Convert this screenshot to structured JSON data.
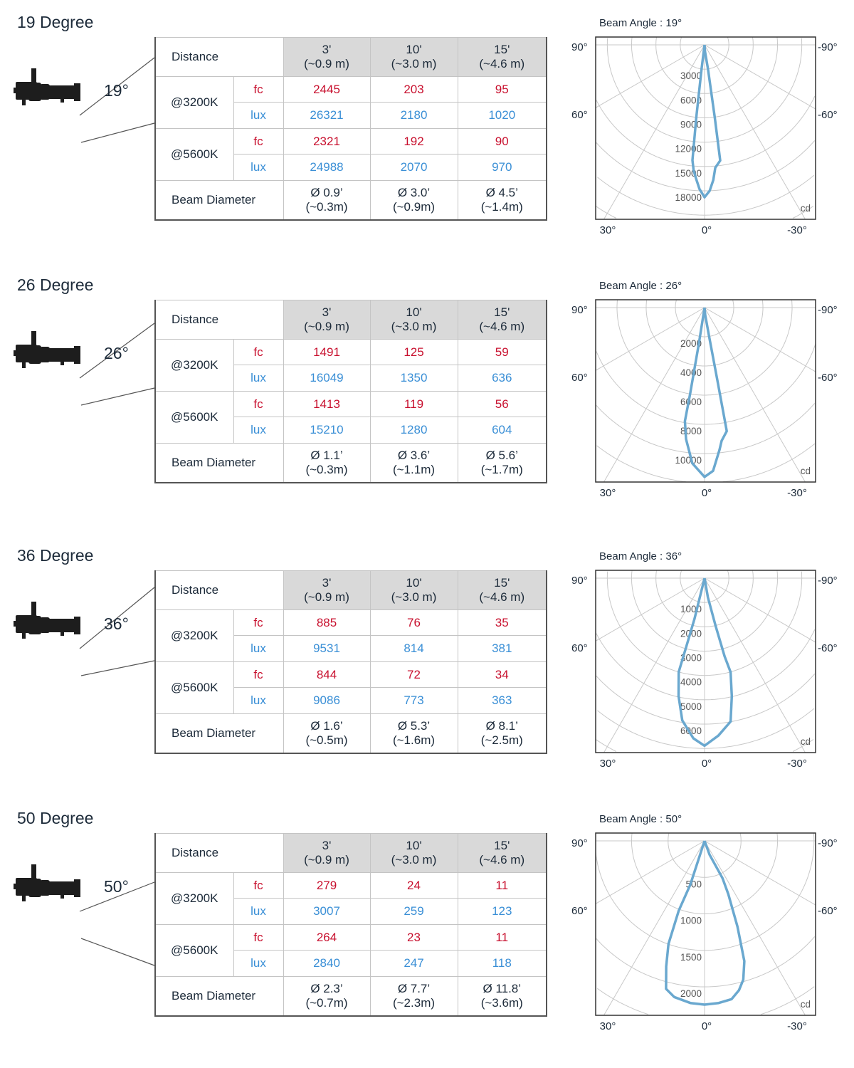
{
  "distance_label": "Distance",
  "beam_diameter_label": "Beam Diameter",
  "cct_labels": [
    "@3200K",
    "@5600K"
  ],
  "unit_labels": {
    "fc": "fc",
    "lux": "lux"
  },
  "distances": [
    {
      "ft": "3'",
      "m": "(~0.9 m)"
    },
    {
      "ft": "10'",
      "m": "(~3.0 m)"
    },
    {
      "ft": "15'",
      "m": "(~4.6 m)"
    }
  ],
  "colors": {
    "fc": "#c8102e",
    "lux": "#3a8fd6",
    "curve": "#6aa8cf",
    "header_bg": "#d9d9d9"
  },
  "sections": [
    {
      "title": "19 Degree",
      "angle": "19°",
      "fc_3200": [
        "2445",
        "203",
        "95"
      ],
      "lux_3200": [
        "26321",
        "2180",
        "1020"
      ],
      "fc_5600": [
        "2321",
        "192",
        "90"
      ],
      "lux_5600": [
        "24988",
        "2070",
        "970"
      ],
      "beam": [
        [
          "Ø 0.9’",
          "(~0.3m)"
        ],
        [
          "Ø 3.0’",
          "(~0.9m)"
        ],
        [
          "Ø 4.5’",
          "(~1.4m)"
        ]
      ]
    },
    {
      "title": "26 Degree",
      "angle": "26°",
      "fc_3200": [
        "1491",
        "125",
        "59"
      ],
      "lux_3200": [
        "16049",
        "1350",
        "636"
      ],
      "fc_5600": [
        "1413",
        "119",
        "56"
      ],
      "lux_5600": [
        "15210",
        "1280",
        "604"
      ],
      "beam": [
        [
          "Ø 1.1’",
          "(~0.3m)"
        ],
        [
          "Ø 3.6’",
          "(~1.1m)"
        ],
        [
          "Ø 5.6’",
          "(~1.7m)"
        ]
      ]
    },
    {
      "title": "36 Degree",
      "angle": "36°",
      "fc_3200": [
        "885",
        "76",
        "35"
      ],
      "lux_3200": [
        "9531",
        "814",
        "381"
      ],
      "fc_5600": [
        "844",
        "72",
        "34"
      ],
      "lux_5600": [
        "9086",
        "773",
        "363"
      ],
      "beam": [
        [
          "Ø 1.6’",
          "(~0.5m)"
        ],
        [
          "Ø 5.3’",
          "(~1.6m)"
        ],
        [
          "Ø 8.1’",
          "(~2.5m)"
        ]
      ]
    },
    {
      "title": "50 Degree",
      "angle": "50°",
      "fc_3200": [
        "279",
        "24",
        "11"
      ],
      "lux_3200": [
        "3007",
        "259",
        "123"
      ],
      "fc_5600": [
        "264",
        "23",
        "11"
      ],
      "lux_5600": [
        "2840",
        "247",
        "118"
      ],
      "beam": [
        [
          "Ø 2.3’",
          "(~0.7m)"
        ],
        [
          "Ø 7.7’",
          "(~2.3m)"
        ],
        [
          "Ø 11.8’",
          "(~3.6m)"
        ]
      ]
    }
  ],
  "chart_data": [
    {
      "type": "polar",
      "title": "Beam Angle : 19°",
      "unit": "cd",
      "angle_labels": {
        "left_top": "90°",
        "left_mid": "60°",
        "right_top": "-90°",
        "right_mid": "-60°",
        "bottom_left": "30°",
        "bottom_center": "0°",
        "bottom_right": "-30°"
      },
      "ring_labels": [
        "3000",
        "6000",
        "9000",
        "12000",
        "15000",
        "18000"
      ],
      "ring_values": [
        3000,
        6000,
        9000,
        12000,
        15000,
        18000
      ],
      "curve": [
        [
          0,
          0
        ],
        [
          7,
          3000
        ],
        [
          6.5,
          9000
        ],
        [
          6,
          14300
        ],
        [
          5,
          15500
        ],
        [
          3.8,
          16400
        ],
        [
          2,
          17800
        ],
        [
          0,
          18800
        ],
        [
          -2,
          18000
        ],
        [
          -3.7,
          16700
        ],
        [
          -5,
          15200
        ],
        [
          -7.7,
          14400
        ],
        [
          -8,
          9000
        ],
        [
          -8,
          3000
        ],
        [
          -4,
          800
        ],
        [
          0,
          0
        ]
      ]
    },
    {
      "type": "polar",
      "title": "Beam Angle : 26°",
      "unit": "cd",
      "angle_labels": {
        "left_top": "90°",
        "left_mid": "60°",
        "right_top": "-90°",
        "right_mid": "-60°",
        "bottom_left": "30°",
        "bottom_center": "0°",
        "bottom_right": "-30°"
      },
      "ring_labels": [
        "2000",
        "4000",
        "6000",
        "8000",
        "10000"
      ],
      "ring_values": [
        2000,
        4000,
        6000,
        8000,
        10000
      ],
      "curve": [
        [
          0,
          0
        ],
        [
          9,
          2500
        ],
        [
          9.5,
          6000
        ],
        [
          9.8,
          7900
        ],
        [
          8,
          9100
        ],
        [
          4.5,
          10700
        ],
        [
          0,
          11600
        ],
        [
          -3,
          11200
        ],
        [
          -6,
          9800
        ],
        [
          -7.3,
          9200
        ],
        [
          -10.2,
          8600
        ],
        [
          -10,
          5000
        ],
        [
          -9,
          2000
        ],
        [
          -5,
          500
        ],
        [
          0,
          0
        ]
      ]
    },
    {
      "type": "polar",
      "title": "Beam Angle : 36°",
      "unit": "cd",
      "angle_labels": {
        "left_top": "90°",
        "left_mid": "60°",
        "right_top": "-90°",
        "right_mid": "-60°",
        "bottom_left": "30°",
        "bottom_center": "0°",
        "bottom_right": "-30°"
      },
      "ring_labels": [
        "1000",
        "2000",
        "3000",
        "4000",
        "5000",
        "6000"
      ],
      "ring_values": [
        1000,
        2000,
        3000,
        4000,
        5000,
        6000
      ],
      "curve": [
        [
          0,
          0
        ],
        [
          13.9,
          1730
        ],
        [
          15,
          3000
        ],
        [
          15.4,
          4000
        ],
        [
          12.4,
          4970
        ],
        [
          8.9,
          5920
        ],
        [
          4,
          6600
        ],
        [
          0,
          6890
        ],
        [
          -5,
          6500
        ],
        [
          -10.3,
          5990
        ],
        [
          -13,
          4980
        ],
        [
          -15.5,
          4010
        ],
        [
          -14.4,
          3320
        ],
        [
          -13,
          2000
        ],
        [
          -10,
          800
        ],
        [
          0,
          0
        ]
      ]
    },
    {
      "type": "polar",
      "title": "Beam Angle : 50°",
      "unit": "cd",
      "angle_labels": {
        "left_top": "90°",
        "left_mid": "60°",
        "right_top": "-90°",
        "right_mid": "-60°",
        "bottom_left": "30°",
        "bottom_center": "0°",
        "bottom_right": "-30°"
      },
      "ring_labels": [
        "500",
        "1000",
        "1500",
        "2000"
      ],
      "ring_values": [
        500,
        1000,
        1500,
        2000
      ],
      "curve": [
        [
          0,
          0
        ],
        [
          18,
          630
        ],
        [
          20.3,
          1020
        ],
        [
          19.3,
          1497
        ],
        [
          17,
          1800
        ],
        [
          14.6,
          2095
        ],
        [
          11,
          2180
        ],
        [
          5,
          2230
        ],
        [
          0,
          2244
        ],
        [
          -5,
          2230
        ],
        [
          -9.7,
          2200
        ],
        [
          -13,
          2100
        ],
        [
          -15.6,
          1975
        ],
        [
          -18.3,
          1737
        ],
        [
          -21,
          1260
        ],
        [
          -24,
          800
        ],
        [
          -25.7,
          566
        ],
        [
          -20,
          200
        ],
        [
          0,
          0
        ]
      ]
    }
  ]
}
